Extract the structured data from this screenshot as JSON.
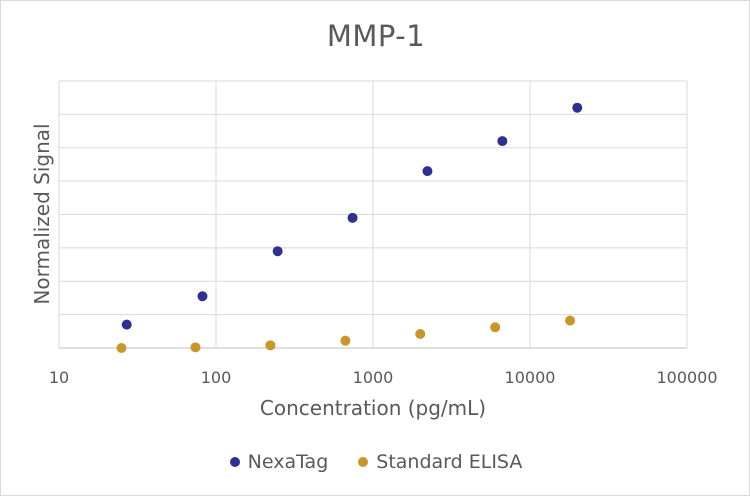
{
  "chart_data": {
    "type": "scatter",
    "title": "MMP-1",
    "xlabel": "Concentration (pg/mL)",
    "ylabel": "Normalized Signal",
    "x_scale": "log",
    "xlim": [
      10,
      100000
    ],
    "ylim": [
      0,
      8
    ],
    "x_ticks": [
      "10",
      "100",
      "1000",
      "10000",
      "100000"
    ],
    "grid": true,
    "legend_position": "bottom",
    "series": [
      {
        "name": "NexaTag",
        "color": "#2e3192",
        "x": [
          27,
          82,
          247,
          741,
          2222,
          6667,
          20000
        ],
        "y": [
          0.7,
          1.55,
          2.9,
          3.9,
          5.3,
          6.2,
          7.2
        ]
      },
      {
        "name": "Standard ELISA",
        "color": "#c9962c",
        "x": [
          25,
          74,
          222,
          667,
          2000,
          6000,
          18000
        ],
        "y": [
          0.0,
          0.02,
          0.08,
          0.22,
          0.42,
          0.62,
          0.82
        ]
      }
    ]
  }
}
